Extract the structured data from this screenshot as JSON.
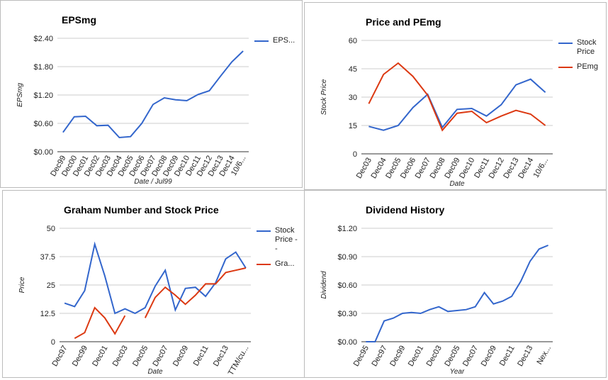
{
  "chart_data": [
    {
      "type": "line",
      "title": "EPSmg",
      "y_label": "EPSmg",
      "x_label": "Date / Jul99",
      "categories": [
        "Dec99",
        "Dec00",
        "Dec01",
        "Dec02",
        "Dec03",
        "Dec04",
        "Dec05",
        "Dec06",
        "Dec07",
        "Dec08",
        "Dec09",
        "Dec10",
        "Dec11",
        "Dec12",
        "Dec13",
        "Dec14",
        "10/6..."
      ],
      "series": [
        {
          "name": "EPS...",
          "color": "#3366cc",
          "values": [
            0.41,
            0.74,
            0.75,
            0.55,
            0.56,
            0.3,
            0.32,
            0.6,
            1.0,
            1.14,
            1.1,
            1.08,
            1.21,
            1.29,
            1.6,
            1.9,
            2.13
          ]
        }
      ],
      "ylim": [
        0,
        2.4
      ],
      "yticks": [
        {
          "value": 0,
          "label": "$0.00"
        },
        {
          "value": 0.6,
          "label": "$0.60"
        },
        {
          "value": 1.2,
          "label": "$1.20"
        },
        {
          "value": 1.8,
          "label": "$1.80"
        },
        {
          "value": 2.4,
          "label": "$2.40"
        }
      ],
      "grid": true,
      "legend": "right"
    },
    {
      "type": "line",
      "title": "Price and PEmg",
      "y_label": "Stock Price",
      "x_label": "Date",
      "categories": [
        "Dec03",
        "Dec04",
        "Dec05",
        "Dec06",
        "Dec07",
        "Dec08",
        "Dec09",
        "Dec10",
        "Dec11",
        "Dec12",
        "Dec13",
        "Dec14",
        "10/6..."
      ],
      "series": [
        {
          "name": "Stock Price",
          "color": "#3366cc",
          "values": [
            14.5,
            12.5,
            15,
            24.5,
            31.5,
            14,
            23.5,
            24,
            20,
            26,
            36.5,
            39.5,
            32.5
          ]
        },
        {
          "name": "PEmg",
          "color": "#dc3912",
          "values": [
            26.5,
            42,
            48,
            41,
            31,
            12.5,
            21.5,
            22.5,
            16.5,
            20,
            23,
            21,
            15
          ]
        }
      ],
      "ylim": [
        0,
        60
      ],
      "yticks": [
        0,
        15,
        30,
        45,
        60
      ],
      "grid": true,
      "legend": "right"
    },
    {
      "type": "line",
      "title": "Graham Number and Stock Price",
      "y_label": "Price",
      "x_label": "Date",
      "categories": [
        "Dec97",
        null,
        "Dec99",
        null,
        "Dec01",
        null,
        "Dec03",
        null,
        "Dec05",
        null,
        "Dec07",
        null,
        "Dec09",
        null,
        "Dec11",
        null,
        "Dec13",
        null,
        "TTM/cu..."
      ],
      "series": [
        {
          "name": "Stock Price - -",
          "color": "#3366cc",
          "values": [
            17,
            15.5,
            22.5,
            43,
            29,
            12.5,
            14.5,
            12.5,
            15,
            24.5,
            31.5,
            14,
            23.5,
            24,
            20,
            26,
            36.5,
            39.5,
            32.5
          ]
        },
        {
          "name": "Gra...",
          "color": "#dc3912",
          "values": [
            null,
            1.5,
            4,
            15,
            10.5,
            3.5,
            11.5,
            null,
            10.5,
            19.5,
            24,
            20.5,
            16.5,
            20.5,
            25.5,
            25.5,
            30.5,
            31.5,
            32.5
          ]
        }
      ],
      "ylim": [
        0,
        50
      ],
      "yticks": [
        0,
        12.5,
        25,
        37.5,
        50
      ],
      "grid": true,
      "legend": "right"
    },
    {
      "type": "line",
      "title": "Dividend History",
      "y_label": "Dividend",
      "x_label": "Year",
      "categories": [
        "Dec95",
        null,
        "Dec97",
        null,
        "Dec99",
        null,
        "Dec01",
        null,
        "Dec03",
        null,
        "Dec05",
        null,
        "Dec07",
        null,
        "Dec09",
        null,
        "Dec11",
        null,
        "Dec13",
        null,
        "Nex..."
      ],
      "series": [
        {
          "color": "#3366cc",
          "values": [
            0,
            0,
            0.22,
            0.25,
            0.3,
            0.31,
            0.3,
            0.34,
            0.37,
            0.32,
            0.33,
            0.34,
            0.37,
            0.52,
            0.4,
            0.43,
            0.48,
            0.64,
            0.85,
            0.98,
            1.02
          ]
        }
      ],
      "ylim": [
        0,
        1.2
      ],
      "yticks": [
        {
          "value": 0,
          "label": "$0.00"
        },
        {
          "value": 0.3,
          "label": "$0.30"
        },
        {
          "value": 0.6,
          "label": "$0.60"
        },
        {
          "value": 0.9,
          "label": "$0.90"
        },
        {
          "value": 1.2,
          "label": "$1.20"
        }
      ],
      "grid": true
    }
  ]
}
